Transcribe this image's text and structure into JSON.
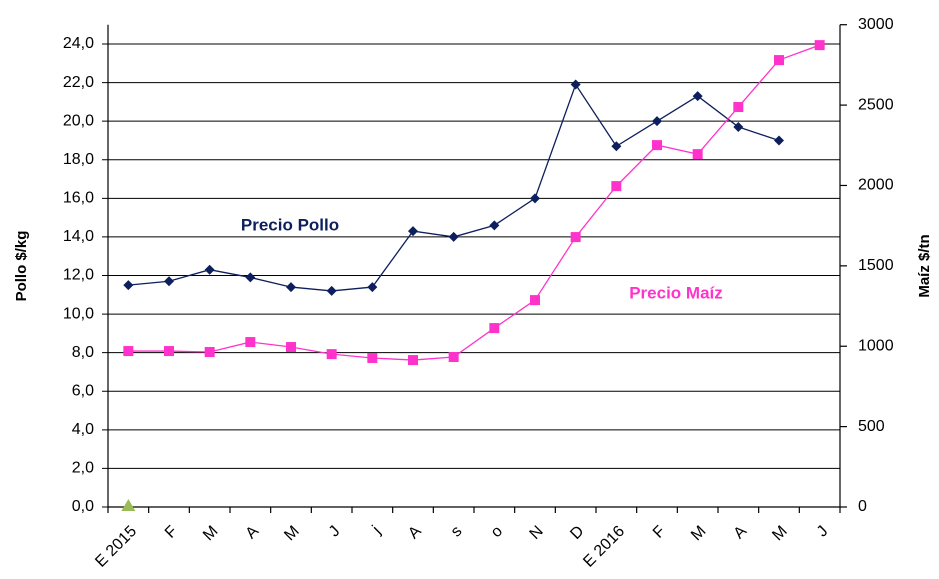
{
  "chart_data": {
    "type": "line",
    "y_label": "Pollo $/kg",
    "y2_label": "Maíz $/tn",
    "categories": [
      "E 2015",
      "F",
      "M",
      "A",
      "M",
      "J",
      "j",
      "A",
      "s",
      "o",
      "N",
      "D",
      "E 2016",
      "F",
      "M",
      "A",
      "M",
      "J"
    ],
    "series": [
      {
        "name": "Precio Pollo",
        "color": "#0d1f5c",
        "marker": "diamond",
        "axis": "y",
        "values": [
          11.5,
          11.7,
          12.3,
          11.9,
          11.4,
          11.2,
          11.4,
          14.3,
          14.0,
          14.6,
          16.0,
          21.9,
          18.7,
          20.0,
          21.3,
          19.7,
          19.0,
          null
        ]
      },
      {
        "name": "Precio Maíz",
        "color": "#ff33cc",
        "marker": "square",
        "axis": "y2",
        "values": [
          970,
          970,
          964,
          1026,
          995,
          951,
          927,
          914,
          933,
          1113,
          1287,
          1679,
          1996,
          2251,
          2195,
          2488,
          2780,
          2873
        ]
      },
      {
        "color": "#9bbb59",
        "marker": "triangle",
        "axis": "y",
        "values": [
          0,
          null,
          null,
          null,
          null,
          null,
          null,
          null,
          null,
          null,
          null,
          null,
          null,
          null,
          null,
          null,
          null,
          null
        ]
      }
    ],
    "ylim": [
      0,
      25
    ],
    "yticks": [
      {
        "value": 0,
        "label": "0,0"
      },
      {
        "value": 2,
        "label": "2,0"
      },
      {
        "value": 4,
        "label": "4,0"
      },
      {
        "value": 6,
        "label": "6,0"
      },
      {
        "value": 8,
        "label": "8,0"
      },
      {
        "value": 10,
        "label": "10,0"
      },
      {
        "value": 12,
        "label": "12,0"
      },
      {
        "value": 14,
        "label": "14,0"
      },
      {
        "value": 16,
        "label": "16,0"
      },
      {
        "value": 18,
        "label": "18,0"
      },
      {
        "value": 20,
        "label": "20,0"
      },
      {
        "value": 22,
        "label": "22,0"
      },
      {
        "value": 24,
        "label": "24,0"
      }
    ],
    "y2lim": [
      0,
      3000
    ],
    "y2ticks": [
      0,
      500,
      1000,
      1500,
      2000,
      2500,
      3000
    ],
    "grid": true
  }
}
